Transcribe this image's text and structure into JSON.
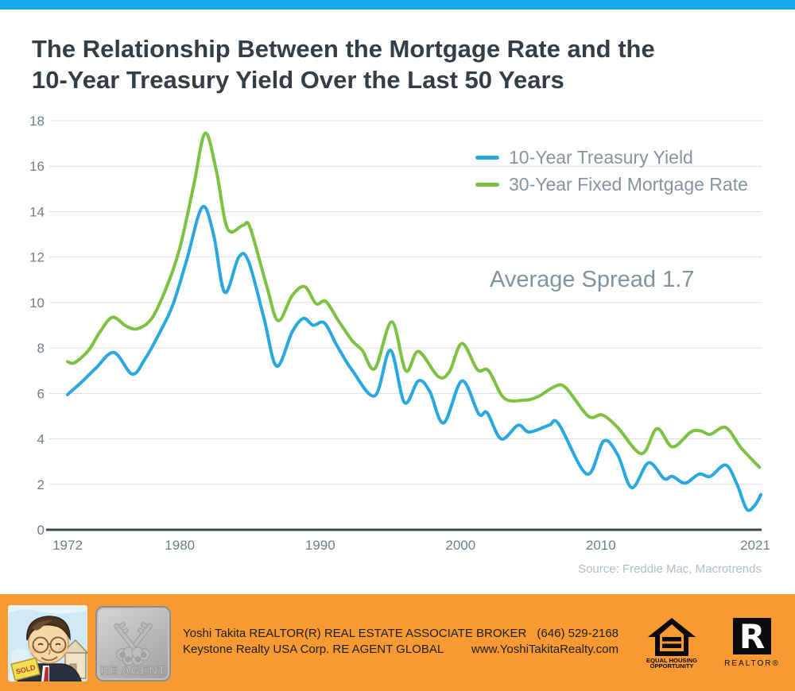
{
  "title": {
    "line1": "The Relationship Between the Mortgage Rate and the",
    "line2": "10-Year Treasury Yield Over the Last 50 Years"
  },
  "annotation": "Average Spread 1.7",
  "source": "Source: Freddie Mac, Macrotrends",
  "theme": {
    "topbar_blue": "#18A9EA",
    "footer_orange": "#F79A33",
    "title_color": "#333E48",
    "axis_text": "#6F7E8C",
    "muted_text": "#8494A4",
    "source_text": "#B4BCC4",
    "gridline": "#DCDFE2",
    "axis_line": "#3C474F"
  },
  "chart_data": {
    "type": "line",
    "title": "The Relationship Between the Mortgage Rate and the 10-Year Treasury Yield Over the Last 50 Years",
    "xlabel": "",
    "ylabel": "",
    "x_range": [
      1972,
      2021
    ],
    "ylim": [
      0,
      18
    ],
    "yticks": [
      0,
      2,
      4,
      6,
      8,
      10,
      12,
      14,
      16,
      18
    ],
    "xticks": [
      1972,
      1980,
      1990,
      2000,
      2010,
      2021
    ],
    "grid": true,
    "legend_position": "top-right",
    "annotation": "Average Spread 1.7",
    "series": [
      {
        "name": "10-Year Treasury Yield",
        "color": "#29A8E0",
        "points": [
          [
            1972.0,
            5.95
          ],
          [
            1973.0,
            6.5
          ],
          [
            1974.0,
            7.1
          ],
          [
            1975.3,
            7.8
          ],
          [
            1976.6,
            6.85
          ],
          [
            1977.5,
            7.5
          ],
          [
            1978.5,
            8.6
          ],
          [
            1979.5,
            9.9
          ],
          [
            1980.5,
            11.9
          ],
          [
            1981.6,
            14.2
          ],
          [
            1982.4,
            13.0
          ],
          [
            1983.2,
            10.45
          ],
          [
            1984.2,
            12.0
          ],
          [
            1984.9,
            11.8
          ],
          [
            1986.0,
            9.3
          ],
          [
            1986.9,
            7.2
          ],
          [
            1988.0,
            8.7
          ],
          [
            1988.8,
            9.3
          ],
          [
            1989.5,
            9.0
          ],
          [
            1990.3,
            9.1
          ],
          [
            1991.2,
            8.1
          ],
          [
            1992.3,
            7.0
          ],
          [
            1993.9,
            5.9
          ],
          [
            1995.0,
            7.9
          ],
          [
            1996.0,
            5.6
          ],
          [
            1997.0,
            6.55
          ],
          [
            1997.8,
            6.1
          ],
          [
            1998.8,
            4.7
          ],
          [
            2000.1,
            6.55
          ],
          [
            2001.3,
            5.1
          ],
          [
            2001.9,
            5.15
          ],
          [
            2002.9,
            4.0
          ],
          [
            2004.1,
            4.6
          ],
          [
            2004.9,
            4.3
          ],
          [
            2006.3,
            4.6
          ],
          [
            2007.0,
            4.65
          ],
          [
            2009.0,
            2.45
          ],
          [
            2010.2,
            3.9
          ],
          [
            2011.2,
            3.3
          ],
          [
            2012.2,
            1.85
          ],
          [
            2013.4,
            2.95
          ],
          [
            2014.5,
            2.25
          ],
          [
            2015.1,
            2.35
          ],
          [
            2016.0,
            2.05
          ],
          [
            2017.0,
            2.45
          ],
          [
            2017.8,
            2.35
          ],
          [
            2018.9,
            2.85
          ],
          [
            2019.7,
            2.0
          ],
          [
            2020.4,
            0.9
          ],
          [
            2021.0,
            1.1
          ],
          [
            2021.4,
            1.55
          ]
        ]
      },
      {
        "name": "30-Year Fixed Mortgage Rate",
        "color": "#7CC142",
        "points": [
          [
            1972.0,
            7.4
          ],
          [
            1972.5,
            7.35
          ],
          [
            1973.5,
            7.9
          ],
          [
            1974.3,
            8.7
          ],
          [
            1975.2,
            9.35
          ],
          [
            1976.2,
            8.95
          ],
          [
            1977.0,
            8.85
          ],
          [
            1978.0,
            9.3
          ],
          [
            1979.0,
            10.6
          ],
          [
            1980.0,
            12.4
          ],
          [
            1981.0,
            15.2
          ],
          [
            1981.8,
            17.45
          ],
          [
            1982.6,
            15.8
          ],
          [
            1983.4,
            13.25
          ],
          [
            1984.5,
            13.4
          ],
          [
            1985.0,
            13.3
          ],
          [
            1986.2,
            10.7
          ],
          [
            1987.0,
            9.2
          ],
          [
            1988.0,
            10.3
          ],
          [
            1988.9,
            10.7
          ],
          [
            1989.7,
            9.95
          ],
          [
            1990.4,
            10.05
          ],
          [
            1991.3,
            9.2
          ],
          [
            1992.3,
            8.3
          ],
          [
            1993.0,
            7.9
          ],
          [
            1993.9,
            7.1
          ],
          [
            1995.1,
            9.15
          ],
          [
            1996.1,
            7.0
          ],
          [
            1997.0,
            7.85
          ],
          [
            1998.4,
            6.75
          ],
          [
            1999.2,
            6.95
          ],
          [
            2000.1,
            8.2
          ],
          [
            2001.2,
            7.05
          ],
          [
            2002.0,
            7.0
          ],
          [
            2003.1,
            5.8
          ],
          [
            2004.5,
            5.7
          ],
          [
            2005.5,
            5.85
          ],
          [
            2006.7,
            6.3
          ],
          [
            2007.5,
            6.25
          ],
          [
            2009.1,
            5.0
          ],
          [
            2010.1,
            5.05
          ],
          [
            2011.2,
            4.5
          ],
          [
            2012.9,
            3.35
          ],
          [
            2014.0,
            4.45
          ],
          [
            2015.1,
            3.65
          ],
          [
            2016.4,
            4.3
          ],
          [
            2017.1,
            4.35
          ],
          [
            2017.8,
            4.2
          ],
          [
            2018.9,
            4.5
          ],
          [
            2020.0,
            3.6
          ],
          [
            2021.3,
            2.75
          ]
        ]
      }
    ]
  },
  "footer": {
    "agent_line1": "Yoshi Takita REALTOR(R) REAL ESTATE ASSOCIATE BROKER",
    "agent_line2": "Keystone Realty USA Corp.  RE AGENT GLOBAL",
    "phone": "(646) 529-2168",
    "website": "www.YoshiTakitaRealty.com",
    "badge_label": "RE AGENT",
    "sold_sign": "SOLD",
    "eho_caption_line1": "EQUAL HOUSING",
    "eho_caption_line2": "OPPORTUNITY",
    "realtor_caption": "REALTOR®"
  }
}
